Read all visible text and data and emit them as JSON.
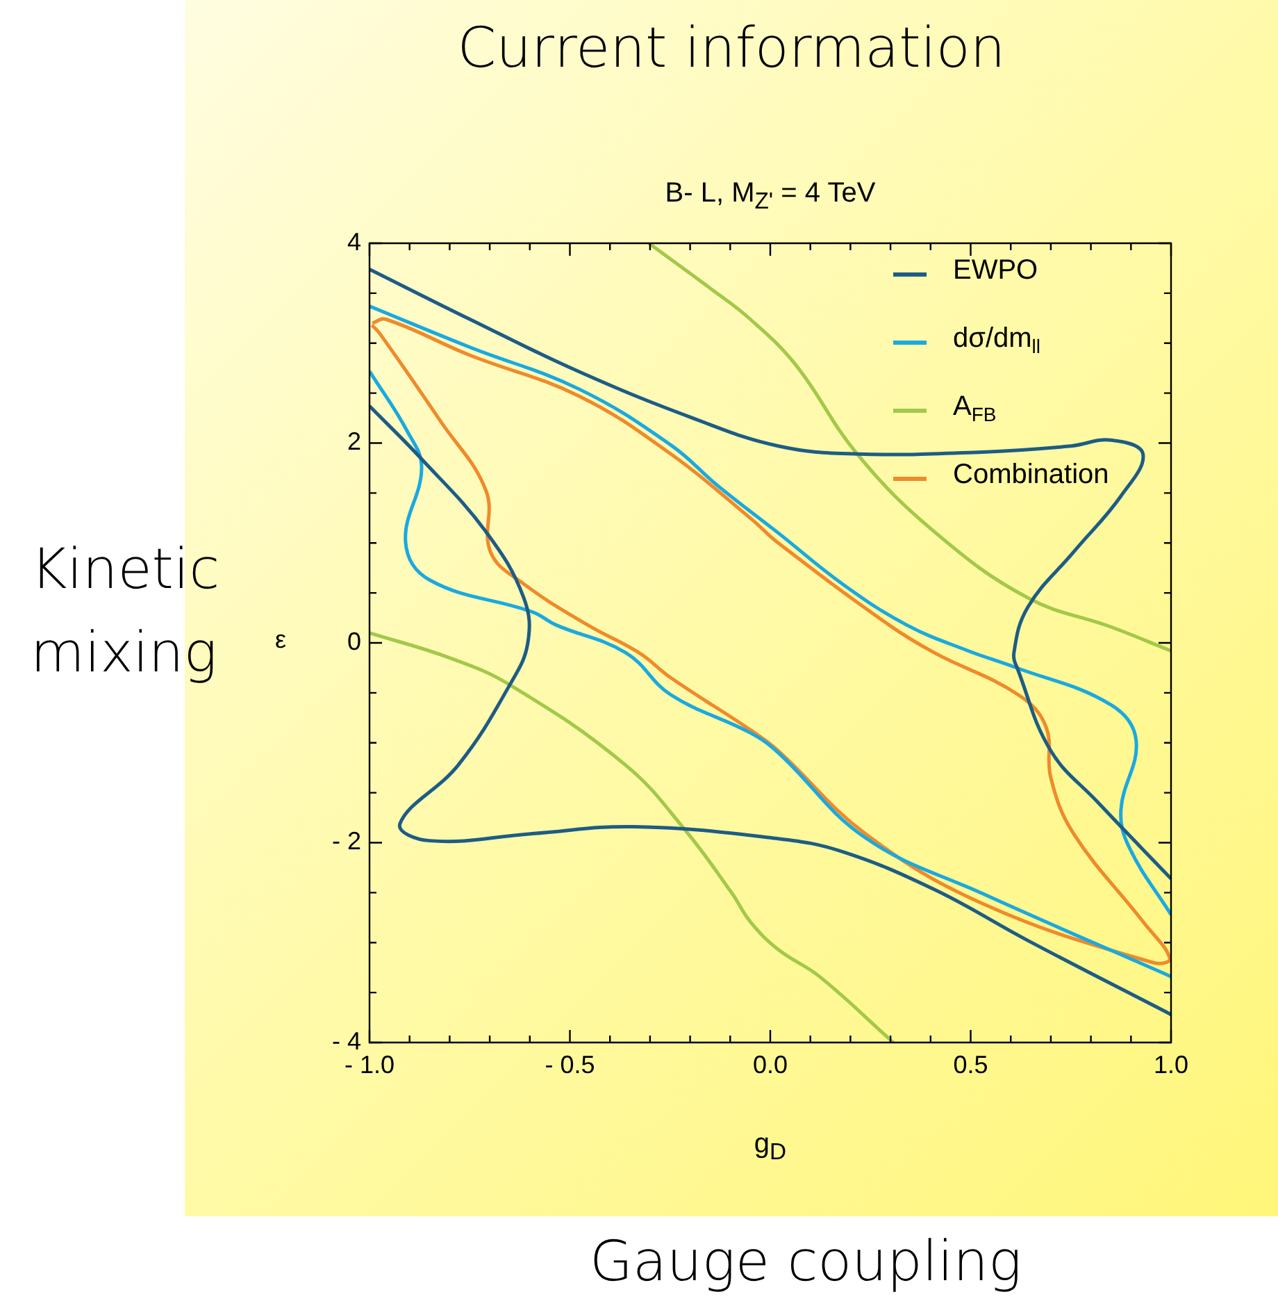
{
  "chart_data": {
    "type": "line",
    "title": "Current information",
    "subtitle": "B- L, M$_{Z'}$ = 4 TeV",
    "xlabel": "g$_{D}$",
    "ylabel": "ε",
    "annotations": [
      "Kinetic mixing",
      "Gauge coupling"
    ],
    "xlim": [
      -1,
      1
    ],
    "ylim": [
      -4,
      4
    ],
    "xticks": [
      {
        "value": -1,
        "label": "- 1.0"
      },
      {
        "value": -0.9,
        "label": null
      },
      {
        "value": -0.8,
        "label": null
      },
      {
        "value": -0.7,
        "label": null
      },
      {
        "value": -0.6,
        "label": null
      },
      {
        "value": -0.5,
        "label": "- 0.5"
      },
      {
        "value": -0.4,
        "label": null
      },
      {
        "value": -0.3,
        "label": null
      },
      {
        "value": -0.2,
        "label": null
      },
      {
        "value": -0.1,
        "label": null
      },
      {
        "value": 0,
        "label": "0.0"
      },
      {
        "value": 0.1,
        "label": null
      },
      {
        "value": 0.2,
        "label": null
      },
      {
        "value": 0.3,
        "label": null
      },
      {
        "value": 0.4,
        "label": null
      },
      0.5,
      {
        "value": 0.6,
        "label": null
      },
      {
        "value": 0.7,
        "label": null
      },
      {
        "value": 0.8,
        "label": null
      },
      {
        "value": 0.9,
        "label": null
      },
      {
        "value": 1,
        "label": "1.0"
      }
    ],
    "yticks": [
      {
        "value": -4,
        "label": "- 4"
      },
      {
        "value": -3.5,
        "label": null
      },
      {
        "value": -3,
        "label": null
      },
      {
        "value": -2.5,
        "label": null
      },
      {
        "value": -2,
        "label": "- 2"
      },
      {
        "value": -1.5,
        "label": null
      },
      {
        "value": -1,
        "label": null
      },
      {
        "value": -0.5,
        "label": null
      },
      0,
      {
        "value": 0.5,
        "label": null
      },
      {
        "value": 1,
        "label": null
      },
      {
        "value": 1.5,
        "label": null
      },
      2,
      {
        "value": 2.5,
        "label": null
      },
      {
        "value": 3,
        "label": null
      },
      {
        "value": 3.5,
        "label": null
      },
      4
    ],
    "legend": "top right",
    "marker": "none",
    "series": [
      {
        "name": "EWPO",
        "color": "#1d5c85",
        "x": [
          -1,
          -0.75,
          -0.48,
          -0.2,
          0.02,
          0.22,
          0.53,
          0.75,
          0.85,
          0.93,
          0.875,
          0.757,
          0.643,
          0.608,
          0.619,
          0.7,
          0.816,
          1,
          null,
          -1,
          -0.87,
          -0.709,
          -0.615,
          -0.605,
          -0.65,
          -0.778,
          -0.924,
          -0.85,
          -0.594,
          -0.34,
          0.02,
          0.18,
          0.41,
          0.643,
          1
        ],
        "values": [
          3.74,
          3.24,
          2.72,
          2.26,
          1.97,
          1.89,
          1.91,
          1.97,
          2.03,
          1.89,
          1.47,
          0.91,
          0.36,
          -0.1,
          -0.28,
          -1.08,
          -1.59,
          -2.36,
          null,
          2.37,
          1.84,
          1.11,
          0.45,
          0,
          -0.42,
          -1.22,
          -1.81,
          -1.98,
          -1.91,
          -1.84,
          -1.96,
          -2.09,
          -2.47,
          -2.98,
          -3.72
        ]
      },
      {
        "name": "dσ/dm$_{ll}$",
        "color": "#1aa9e0",
        "x": [
          -1,
          -0.75,
          -0.477,
          -0.248,
          -0.13,
          0.02,
          0.18,
          0.34,
          0.494,
          0.608,
          0.85,
          0.913,
          0.875,
          0.896,
          1,
          null,
          -1,
          -0.906,
          -0.87,
          -0.91,
          -0.85,
          -0.594,
          -0.535,
          -0.36,
          -0.248,
          -0.05,
          0.02,
          0.237,
          0.53,
          1
        ],
        "values": [
          3.37,
          2.96,
          2.54,
          1.98,
          1.57,
          1.1,
          0.59,
          0.18,
          -0.08,
          -0.24,
          -0.62,
          -0.98,
          -1.67,
          -2.05,
          -2.72,
          null,
          2.72,
          2.12,
          1.75,
          1.01,
          0.63,
          0.31,
          0.18,
          -0.1,
          -0.52,
          -0.9,
          -1.1,
          -1.95,
          -2.51,
          -3.34
        ]
      },
      {
        "name": "A$_{FB}$",
        "color": "#a3c84a",
        "x": [
          -0.303,
          -0.15,
          -0.05,
          0.064,
          0.217,
          0.41,
          0.643,
          0.85,
          1,
          null,
          -1,
          -0.8,
          -0.65,
          -0.362,
          -0.213,
          -0.095,
          -0.05,
          0.02,
          0.123,
          0.307
        ],
        "values": [
          4,
          3.55,
          3.24,
          2.78,
          1.89,
          1.11,
          0.45,
          0.16,
          -0.08,
          null,
          0.1,
          -0.15,
          -0.42,
          -1.22,
          -1.87,
          -2.51,
          -2.79,
          -3.07,
          -3.34,
          -4
        ]
      },
      {
        "name": "Combination",
        "color": "#f08a2a",
        "x": [
          -0.993,
          -0.96,
          -0.75,
          -0.477,
          -0.248,
          -0.05,
          0.02,
          0.296,
          0.41,
          0.619,
          0.688,
          0.7,
          0.757,
          0.93,
          0.997,
          0.955,
          0.53,
          0.237,
          0.02,
          -0.05,
          -0.248,
          -0.327,
          -0.456,
          -0.615,
          -0.698,
          -0.709,
          -0.823,
          -0.975,
          -0.994
        ],
        "values": [
          3.2,
          3.24,
          2.88,
          2.47,
          1.89,
          1.25,
          1.0,
          0.18,
          -0.1,
          -0.52,
          -0.84,
          -1.35,
          -1.91,
          -2.79,
          -3.16,
          -3.2,
          -2.61,
          -1.91,
          -1.08,
          -0.87,
          -0.35,
          -0.1,
          0.18,
          0.59,
          0.91,
          1.52,
          2.22,
          3.1,
          3.18
        ]
      }
    ]
  }
}
